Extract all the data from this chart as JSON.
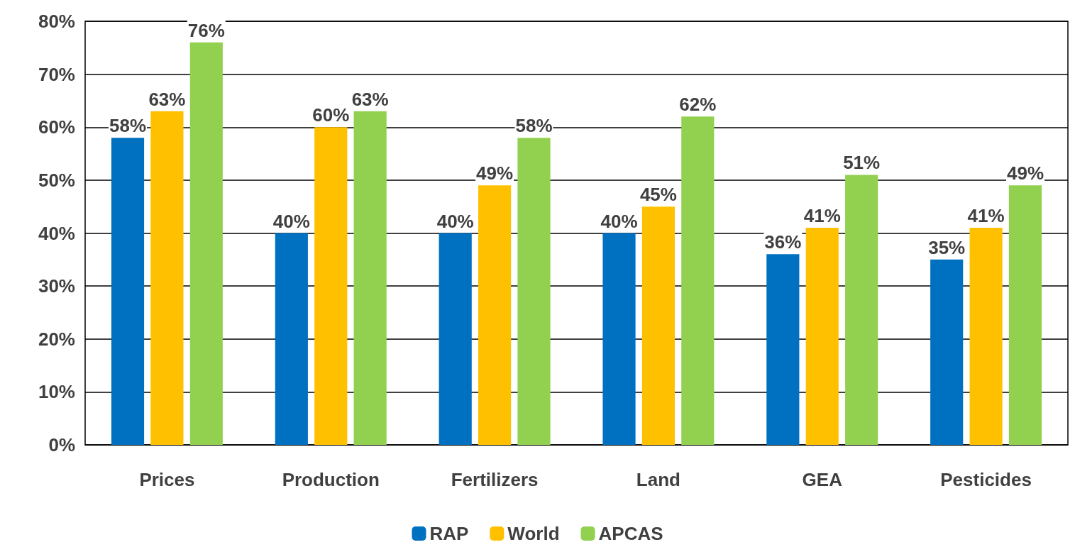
{
  "chart_data": {
    "type": "bar",
    "categories": [
      "Prices",
      "Production",
      "Fertilizers",
      "Land",
      "GEA",
      "Pesticides"
    ],
    "series": [
      {
        "name": "RAP",
        "color": "#0070c0",
        "values": [
          58,
          40,
          40,
          40,
          36,
          35
        ],
        "value_labels": [
          "58%",
          "40%",
          "40%",
          "40%",
          "36%",
          "35%"
        ]
      },
      {
        "name": "World",
        "color": "#ffc000",
        "values": [
          63,
          60,
          49,
          45,
          41,
          41
        ],
        "value_labels": [
          "63%",
          "60%",
          "49%",
          "45%",
          "41%",
          "41%"
        ]
      },
      {
        "name": "APCAS",
        "color": "#92d050",
        "values": [
          76,
          63,
          58,
          62,
          51,
          49
        ],
        "value_labels": [
          "76%",
          "63%",
          "58%",
          "62%",
          "51%",
          "49%"
        ]
      }
    ],
    "ylim": [
      0,
      80
    ],
    "yticks": [
      {
        "value": 0,
        "label": "0%"
      },
      {
        "value": 10,
        "label": "10%"
      },
      {
        "value": 20,
        "label": "20%"
      },
      {
        "value": 30,
        "label": "30%"
      },
      {
        "value": 40,
        "label": "40%"
      },
      {
        "value": 50,
        "label": "50%"
      },
      {
        "value": 60,
        "label": "60%"
      },
      {
        "value": 70,
        "label": "70%"
      },
      {
        "value": 80,
        "label": "80%"
      }
    ],
    "grid": "y",
    "legend": "bottom"
  }
}
